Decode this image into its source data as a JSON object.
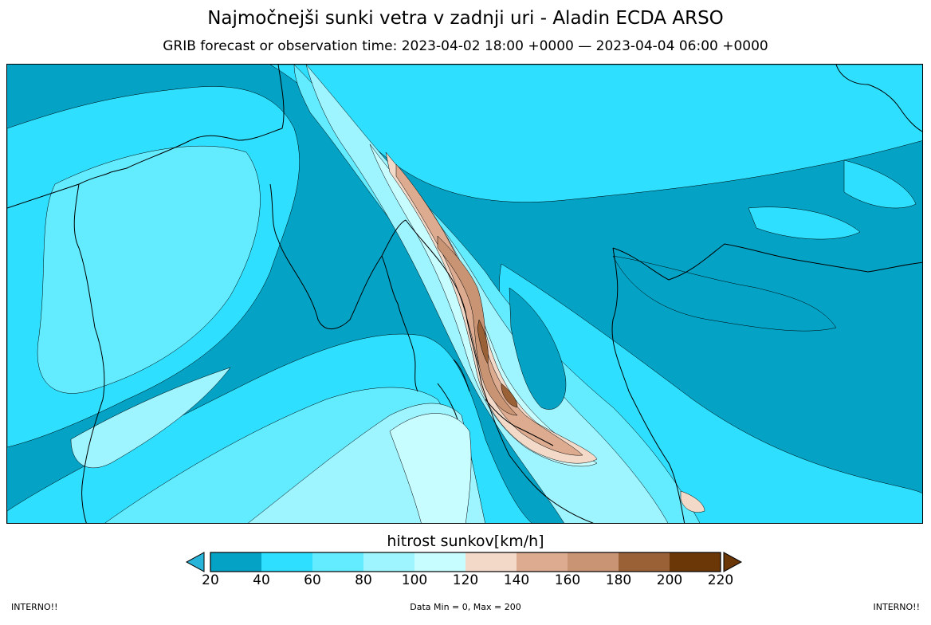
{
  "header": {
    "title": "Najmočnejši sunki vetra v zadnji uri - Aladin ECDA ARSO",
    "subtitle": "GRIB forecast or observation time: 2023-04-02 18:00 +0000 — 2023-04-04 06:00 +0000"
  },
  "colorbar": {
    "label": "hitrost sunkov[km/h]",
    "ticks": [
      "20",
      "40",
      "60",
      "80",
      "100",
      "120",
      "140",
      "160",
      "180",
      "200",
      "220"
    ],
    "colors": [
      "#04a3c6",
      "#2fdfff",
      "#63ebff",
      "#9ef4ff",
      "#c8fdff",
      "#f3d9c8",
      "#ddab8f",
      "#c89474",
      "#9a6036",
      "#6b3707"
    ],
    "under_color": "#29b5d9",
    "over_color": "#6b3707"
  },
  "footer": {
    "left": "INTERNO!!",
    "center": "Data Min = 0, Max = 200",
    "right": "INTERNO!!"
  }
}
